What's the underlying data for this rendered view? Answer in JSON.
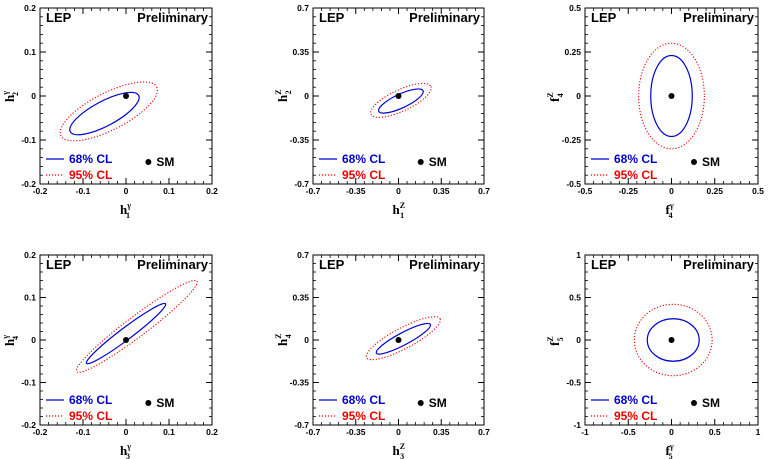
{
  "colors": {
    "cl68": "#0000cc",
    "cl95": "#ee0000",
    "frame": "#000000"
  },
  "chart_data": [
    {
      "type": "scatter",
      "header_left": "LEP",
      "header_right": "Preliminary",
      "xlabel": {
        "base": "h",
        "sub": "1",
        "sup": "γ"
      },
      "ylabel": {
        "base": "h",
        "sub": "2",
        "sup": "γ"
      },
      "xlim": [
        -0.2,
        0.2
      ],
      "ylim": [
        -0.2,
        0.2
      ],
      "xticks": [
        "-0.2",
        "-0.1",
        "0",
        "0.1",
        "0.2"
      ],
      "yticks": [
        "-0.2",
        "-0.1",
        "0",
        "0.1",
        "0.2"
      ],
      "contour_68": {
        "center": [
          -0.05,
          -0.04
        ],
        "semi_axes": [
          0.09,
          0.028
        ],
        "angle_deg": 28
      },
      "contour_95": {
        "center": [
          -0.04,
          -0.035
        ],
        "semi_axes": [
          0.125,
          0.042
        ],
        "angle_deg": 27
      },
      "sm_point": [
        0,
        0
      ],
      "legend": [
        {
          "label": "68% CL",
          "color": "#0000cc",
          "style": "solid"
        },
        {
          "label": "95% CL",
          "color": "#ee0000",
          "style": "dotted"
        },
        {
          "label": "SM",
          "marker": "dot"
        }
      ]
    },
    {
      "type": "scatter",
      "header_left": "LEP",
      "header_right": "Preliminary",
      "xlabel": {
        "base": "h",
        "sub": "1",
        "sup": "Z"
      },
      "ylabel": {
        "base": "h",
        "sub": "2",
        "sup": "Z"
      },
      "xlim": [
        -0.7,
        0.7
      ],
      "ylim": [
        -0.7,
        0.7
      ],
      "xticks": [
        "-0.7",
        "-0.35",
        "0",
        "0.35",
        "0.7"
      ],
      "yticks": [
        "-0.7",
        "-0.35",
        "0",
        "0.35",
        "0.7"
      ],
      "contour_68": {
        "center": [
          0.02,
          -0.04
        ],
        "semi_axes": [
          0.2,
          0.055
        ],
        "angle_deg": 25
      },
      "contour_95": {
        "center": [
          0.02,
          -0.035
        ],
        "semi_axes": [
          0.27,
          0.085
        ],
        "angle_deg": 25
      },
      "sm_point": [
        0,
        0
      ],
      "legend": [
        {
          "label": "68% CL",
          "color": "#0000cc",
          "style": "solid"
        },
        {
          "label": "95% CL",
          "color": "#ee0000",
          "style": "dotted"
        },
        {
          "label": "SM",
          "marker": "dot"
        }
      ]
    },
    {
      "type": "scatter",
      "header_left": "LEP",
      "header_right": "Preliminary",
      "xlabel": {
        "base": "f",
        "sub": "4",
        "sup": "γ"
      },
      "ylabel": {
        "base": "f",
        "sub": "4",
        "sup": "Z"
      },
      "xlim": [
        -0.5,
        0.5
      ],
      "ylim": [
        -0.5,
        0.5
      ],
      "xticks": [
        "-0.5",
        "-0.25",
        "0",
        "0.25",
        "0.5"
      ],
      "yticks": [
        "-0.5",
        "-0.25",
        "0",
        "0.25",
        "0.5"
      ],
      "contour_68": {
        "center": [
          0.0,
          0.0
        ],
        "semi_axes": [
          0.12,
          0.23
        ],
        "angle_deg": 0
      },
      "contour_95": {
        "center": [
          0.0,
          0.0
        ],
        "semi_axes": [
          0.19,
          0.3
        ],
        "angle_deg": 0
      },
      "sm_point": [
        0,
        0
      ],
      "legend": [
        {
          "label": "68% CL",
          "color": "#0000cc",
          "style": "solid"
        },
        {
          "label": "95% CL",
          "color": "#ee0000",
          "style": "dotted"
        },
        {
          "label": "SM",
          "marker": "dot"
        }
      ]
    },
    {
      "type": "scatter",
      "header_left": "LEP",
      "header_right": "Preliminary",
      "xlabel": {
        "base": "h",
        "sub": "3",
        "sup": "γ"
      },
      "ylabel": {
        "base": "h",
        "sub": "4",
        "sup": "γ"
      },
      "xlim": [
        -0.2,
        0.2
      ],
      "ylim": [
        -0.2,
        0.2
      ],
      "xticks": [
        "-0.2",
        "-0.1",
        "0",
        "0.1",
        "0.2"
      ],
      "yticks": [
        "-0.2",
        "-0.1",
        "0",
        "0.1",
        "0.2"
      ],
      "contour_68": {
        "center": [
          0.0,
          0.015
        ],
        "semi_axes": [
          0.115,
          0.014
        ],
        "angle_deg": 37
      },
      "contour_95": {
        "center": [
          0.025,
          0.032
        ],
        "semi_axes": [
          0.175,
          0.024
        ],
        "angle_deg": 37
      },
      "sm_point": [
        0,
        0
      ],
      "legend": [
        {
          "label": "68% CL",
          "color": "#0000cc",
          "style": "solid"
        },
        {
          "label": "95% CL",
          "color": "#ee0000",
          "style": "dotted"
        },
        {
          "label": "SM",
          "marker": "dot"
        }
      ]
    },
    {
      "type": "scatter",
      "header_left": "LEP",
      "header_right": "Preliminary",
      "xlabel": {
        "base": "h",
        "sub": "3",
        "sup": "Z"
      },
      "ylabel": {
        "base": "h",
        "sub": "4",
        "sup": "Z"
      },
      "xlim": [
        -0.7,
        0.7
      ],
      "ylim": [
        -0.7,
        0.7
      ],
      "xticks": [
        "-0.7",
        "-0.35",
        "0",
        "0.35",
        "0.7"
      ],
      "yticks": [
        "-0.7",
        "-0.35",
        "0",
        "0.35",
        "0.7"
      ],
      "contour_68": {
        "center": [
          0.04,
          0.01
        ],
        "semi_axes": [
          0.25,
          0.05
        ],
        "angle_deg": 28
      },
      "contour_95": {
        "center": [
          0.04,
          0.015
        ],
        "semi_axes": [
          0.34,
          0.085
        ],
        "angle_deg": 28
      },
      "sm_point": [
        0,
        0
      ],
      "legend": [
        {
          "label": "68% CL",
          "color": "#0000cc",
          "style": "solid"
        },
        {
          "label": "95% CL",
          "color": "#ee0000",
          "style": "dotted"
        },
        {
          "label": "SM",
          "marker": "dot"
        }
      ]
    },
    {
      "type": "scatter",
      "header_left": "LEP",
      "header_right": "Preliminary",
      "xlabel": {
        "base": "f",
        "sub": "5",
        "sup": "γ"
      },
      "ylabel": {
        "base": "f",
        "sub": "5",
        "sup": "Z"
      },
      "xlim": [
        -1,
        1
      ],
      "ylim": [
        -1,
        1
      ],
      "xticks": [
        "-1",
        "-0.5",
        "0",
        "0.5",
        "1"
      ],
      "yticks": [
        "-1",
        "-0.5",
        "0",
        "0.5",
        "1"
      ],
      "contour_68": {
        "center": [
          0.02,
          0.0
        ],
        "semi_axes": [
          0.3,
          0.25
        ],
        "angle_deg": 0
      },
      "contour_95": {
        "center": [
          0.02,
          0.0
        ],
        "semi_axes": [
          0.45,
          0.42
        ],
        "angle_deg": 0
      },
      "sm_point": [
        0,
        0
      ],
      "legend": [
        {
          "label": "68% CL",
          "color": "#0000cc",
          "style": "solid"
        },
        {
          "label": "95% CL",
          "color": "#ee0000",
          "style": "dotted"
        },
        {
          "label": "SM",
          "marker": "dot"
        }
      ]
    }
  ]
}
